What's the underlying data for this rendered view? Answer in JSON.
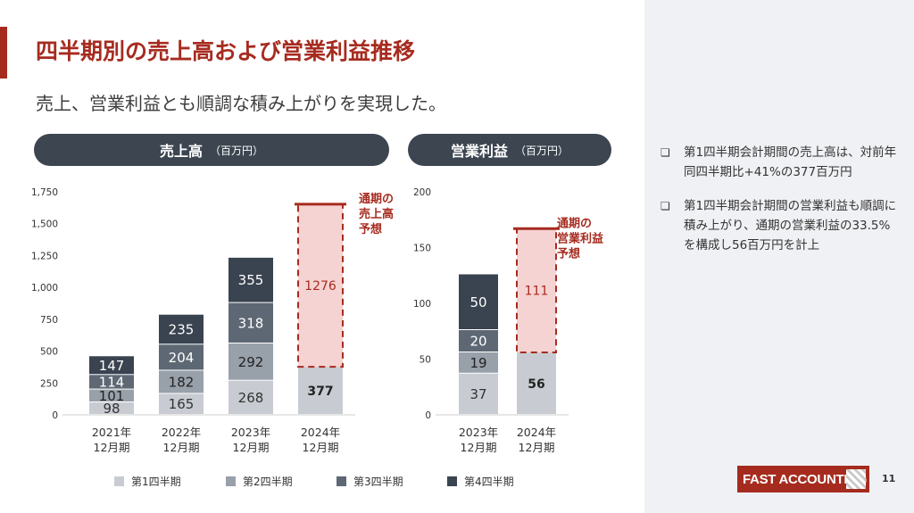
{
  "slide": {
    "title": "四半期別の売上高および営業利益推移",
    "subtitle": "売上、営業利益とも順調な積み上がりを実現した。",
    "page_number": "11",
    "logo_text": "FAST ACCOUNTING"
  },
  "bullets": [
    "第1四半期会計期間の売上高は、対前年同四半期比+41%の377百万円",
    "第1四半期会計期間の営業利益も順調に積み上がり、通期の営業利益の33.5%を構成し56百万円を計上"
  ],
  "legend": [
    "第1四半期",
    "第2四半期",
    "第3四半期",
    "第4四半期"
  ],
  "colors": {
    "q1": "#c8ccd2",
    "q2": "#98a0aa",
    "q3": "#5e6874",
    "q4": "#3a4350",
    "forecast_fill": "#f6d3d3",
    "accent": "#a62b1f",
    "pill": "#3c4550"
  },
  "chart_data": [
    {
      "type": "bar",
      "stacked": true,
      "header": "売上高",
      "unit": "（百万円）",
      "categories": [
        "2021年\n12月期",
        "2022年\n12月期",
        "2023年\n12月期",
        "2024年\n12月期"
      ],
      "series": [
        {
          "name": "第1四半期",
          "values": [
            98,
            165,
            268,
            377
          ]
        },
        {
          "name": "第2四半期",
          "values": [
            101,
            182,
            292,
            null
          ]
        },
        {
          "name": "第3四半期",
          "values": [
            114,
            204,
            318,
            null
          ]
        },
        {
          "name": "第4四半期",
          "values": [
            147,
            235,
            355,
            null
          ]
        }
      ],
      "forecast": {
        "category_index": 3,
        "remaining": 1276,
        "label": "通期の\n売上高\n予想"
      },
      "ylim": [
        0,
        1750
      ],
      "yticks": [
        0,
        250,
        500,
        750,
        1000,
        1250,
        1500,
        1750
      ],
      "ytick_labels": [
        "0",
        "250",
        "500",
        "750",
        "1,000",
        "1,250",
        "1,500",
        "1,750"
      ]
    },
    {
      "type": "bar",
      "stacked": true,
      "header": "営業利益",
      "unit": "（百万円）",
      "categories": [
        "2023年\n12月期",
        "2024年\n12月期"
      ],
      "series": [
        {
          "name": "第1四半期",
          "values": [
            37,
            56
          ]
        },
        {
          "name": "第2四半期",
          "values": [
            19,
            null
          ]
        },
        {
          "name": "第3四半期",
          "values": [
            20,
            null
          ]
        },
        {
          "name": "第4四半期",
          "values": [
            50,
            null
          ]
        }
      ],
      "forecast": {
        "category_index": 1,
        "remaining": 111,
        "label": "通期の\n営業利益\n予想"
      },
      "ylim": [
        0,
        200
      ],
      "yticks": [
        0,
        50,
        100,
        150,
        200
      ],
      "ytick_labels": [
        "0",
        "50",
        "100",
        "150",
        "200"
      ]
    }
  ]
}
